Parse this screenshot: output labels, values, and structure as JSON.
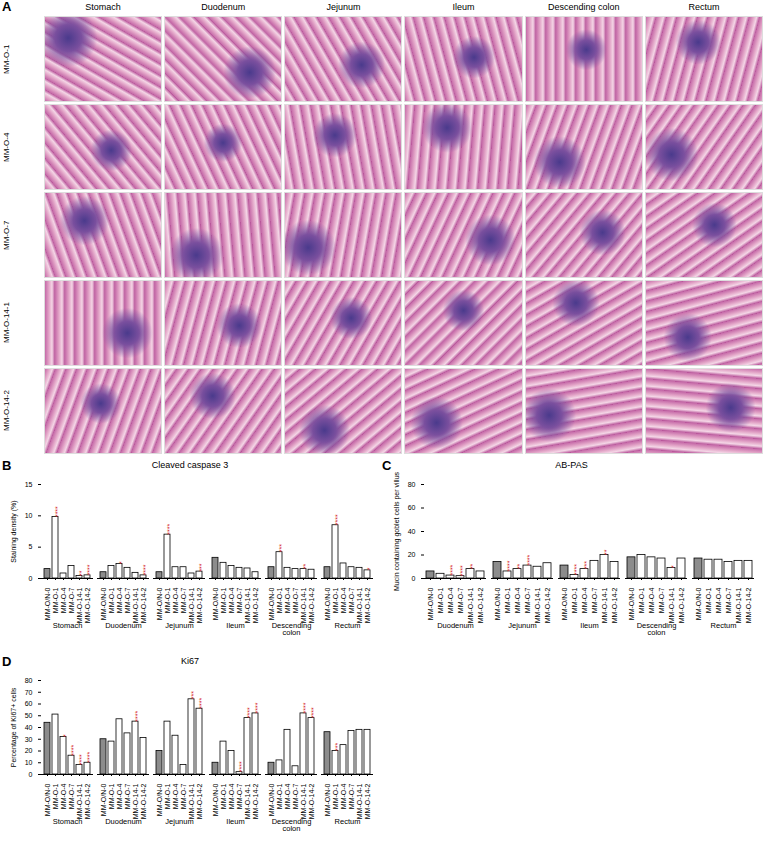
{
  "image_panel": {
    "panel_label": "A",
    "columns": [
      "Stomach",
      "Duodenum",
      "Jejunum",
      "Ileum",
      "Descending colon",
      "Rectum"
    ],
    "rows": [
      "MM-O-1",
      "MM-O-4",
      "MM-O-7",
      "MM-O-14-1",
      "MM-O-14-2"
    ]
  },
  "chart_data": [
    {
      "type": "bar",
      "panel_label": "B",
      "title": "Cleaved caspase 3",
      "y_label": "Staining density (%)",
      "categories": [
        "Stomach",
        "Duodenum",
        "Jejunum",
        "Ileum",
        "Descending colon",
        "Rectum"
      ],
      "series": [
        {
          "name": "MM-O/N-0",
          "color": "#8c8c8c",
          "values": [
            1.5,
            1.0,
            1.0,
            3.3,
            1.8,
            1.8
          ],
          "significance": [
            null,
            null,
            null,
            null,
            null,
            null
          ]
        },
        {
          "name": "MM-O-1",
          "color": "#ffffff",
          "values": [
            9.8,
            2.0,
            7.0,
            2.5,
            4.2,
            8.5
          ],
          "significance": [
            "****",
            null,
            "****",
            null,
            "***",
            "****"
          ]
        },
        {
          "name": "MM-O-4",
          "color": "#ffffff",
          "values": [
            0.8,
            2.3,
            1.8,
            2.0,
            1.7,
            2.4
          ],
          "significance": [
            null,
            "*",
            null,
            null,
            null,
            null
          ]
        },
        {
          "name": "MM-O-7",
          "color": "#ffffff",
          "values": [
            2.0,
            1.7,
            1.8,
            1.7,
            1.5,
            1.8
          ],
          "significance": [
            null,
            null,
            null,
            null,
            null,
            null
          ]
        },
        {
          "name": "MM-O-14-1",
          "color": "#ffffff",
          "values": [
            0.4,
            0.9,
            0.8,
            1.6,
            1.5,
            1.7
          ],
          "significance": [
            "**",
            null,
            null,
            null,
            "**",
            null
          ]
        },
        {
          "name": "MM-O-14-2",
          "color": "#ffffff",
          "values": [
            0.5,
            0.5,
            1.1,
            1.0,
            1.4,
            1.3
          ],
          "significance": [
            "****",
            "****",
            "***",
            null,
            null,
            "*"
          ]
        }
      ],
      "ylim": [
        0,
        15
      ],
      "yticks": [
        0,
        5,
        10,
        15
      ]
    },
    {
      "type": "bar",
      "panel_label": "C",
      "title": "AB-PAS",
      "y_label": "Mucin containing goblet cells per villus",
      "categories": [
        "Duodenum",
        "Jejunum",
        "Ileum",
        "Descending colon",
        "Rectum"
      ],
      "series": [
        {
          "name": "MM-O/N-0",
          "color": "#8c8c8c",
          "values": [
            6,
            14,
            11,
            18,
            17
          ],
          "significance": [
            null,
            null,
            null,
            null,
            null
          ]
        },
        {
          "name": "MM-O-1",
          "color": "#ffffff",
          "values": [
            4,
            6,
            3,
            20,
            16
          ],
          "significance": [
            null,
            "****",
            "****",
            null,
            null
          ]
        },
        {
          "name": "MM-O-4",
          "color": "#ffffff",
          "values": [
            2.5,
            8,
            8,
            18,
            16
          ],
          "significance": [
            "****",
            "**",
            "***",
            null,
            null
          ]
        },
        {
          "name": "MM-O-7",
          "color": "#ffffff",
          "values": [
            2,
            11,
            15,
            17,
            14
          ],
          "significance": [
            "****",
            "****",
            null,
            null,
            null
          ]
        },
        {
          "name": "MM-O-14-1",
          "color": "#ffffff",
          "values": [
            8,
            10,
            20,
            9,
            15
          ],
          "significance": [
            "**",
            null,
            "**",
            "*",
            null
          ]
        },
        {
          "name": "MM-O-14-2",
          "color": "#ffffff",
          "values": [
            6,
            13,
            14,
            17,
            15
          ],
          "significance": [
            null,
            null,
            null,
            null,
            null
          ]
        }
      ],
      "ylim": [
        0,
        80
      ],
      "yticks": [
        0,
        20,
        40,
        60,
        80
      ]
    },
    {
      "type": "bar",
      "panel_label": "D",
      "title": "Ki67",
      "y_label": "Percentage of Ki67+ cells",
      "categories": [
        "Stomach",
        "Duodenum",
        "Jejunum",
        "Ileum",
        "Descending colon",
        "Rectum"
      ],
      "series": [
        {
          "name": "MM-O/N-0",
          "color": "#8c8c8c",
          "values": [
            44,
            30,
            20,
            10,
            10,
            36
          ],
          "significance": [
            null,
            null,
            null,
            null,
            null,
            null
          ]
        },
        {
          "name": "MM-O-1",
          "color": "#ffffff",
          "values": [
            51,
            28,
            45,
            28,
            12,
            20
          ],
          "significance": [
            null,
            null,
            null,
            null,
            null,
            "***"
          ]
        },
        {
          "name": "MM-O-4",
          "color": "#ffffff",
          "values": [
            32,
            47,
            33,
            20,
            38,
            25
          ],
          "significance": [
            "*",
            null,
            null,
            null,
            null,
            null
          ]
        },
        {
          "name": "MM-O-7",
          "color": "#ffffff",
          "values": [
            16,
            35,
            8,
            2,
            7,
            37
          ],
          "significance": [
            "****",
            null,
            null,
            "****",
            null,
            null
          ]
        },
        {
          "name": "MM-O-14-1",
          "color": "#ffffff",
          "values": [
            8,
            45,
            64,
            48,
            52,
            38
          ],
          "significance": [
            "****",
            "****",
            "***",
            "****",
            "****",
            null
          ]
        },
        {
          "name": "MM-O-14-2",
          "color": "#ffffff",
          "values": [
            10,
            31,
            56,
            52,
            48,
            38
          ],
          "significance": [
            "****",
            null,
            "****",
            "****",
            "****",
            null
          ]
        }
      ],
      "ylim": [
        0,
        80
      ],
      "yticks": [
        0,
        10,
        20,
        30,
        40,
        50,
        60,
        70,
        80
      ]
    }
  ]
}
